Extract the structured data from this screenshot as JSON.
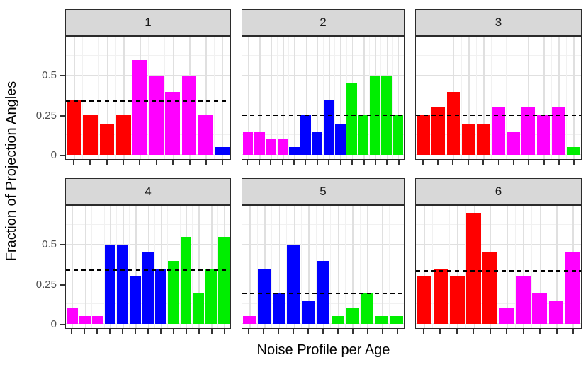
{
  "chart_data": {
    "type": "bar",
    "title": "",
    "xlabel": "Noise Profile per Age",
    "ylabel": "Fraction of Projection Angles",
    "y_tick_labels": [
      "0.5",
      "0.25",
      "0"
    ],
    "y_tick_values": [
      0.5,
      0.25,
      0
    ],
    "y_grid_major": [
      0,
      0.25,
      0.5
    ],
    "y_grid_minor": [
      0.125,
      0.375,
      0.625
    ],
    "ylim": [
      -0.025,
      0.746
    ],
    "grid": true,
    "legend_position": "none",
    "x_tick_labels": "none (tick marks only, one per bar)",
    "colors": {
      "red": "#ff0000",
      "magenta": "#ff00ff",
      "blue": "#0000ff",
      "green": "#00ee00"
    },
    "panels": [
      {
        "label": "1",
        "mean_line": 0.335,
        "values": [
          0.35,
          0.25,
          0.2,
          0.25,
          0.6,
          0.5,
          0.4,
          0.5,
          0.25,
          0.05
        ],
        "colors": [
          "red",
          "red",
          "red",
          "red",
          "magenta",
          "magenta",
          "magenta",
          "magenta",
          "magenta",
          "blue"
        ]
      },
      {
        "label": "2",
        "mean_line": 0.246,
        "values": [
          0.15,
          0.15,
          0.1,
          0.1,
          0.05,
          0.25,
          0.15,
          0.35,
          0.2,
          0.45,
          0.25,
          0.5,
          0.5,
          0.25
        ],
        "colors": [
          "magenta",
          "magenta",
          "magenta",
          "magenta",
          "blue",
          "blue",
          "blue",
          "blue",
          "blue",
          "green",
          "green",
          "green",
          "green",
          "green"
        ]
      },
      {
        "label": "3",
        "mean_line": 0.245,
        "values": [
          0.25,
          0.3,
          0.4,
          0.2,
          0.2,
          0.3,
          0.15,
          0.3,
          0.25,
          0.3,
          0.05
        ],
        "colors": [
          "red",
          "red",
          "red",
          "red",
          "red",
          "magenta",
          "magenta",
          "magenta",
          "magenta",
          "magenta",
          "green"
        ]
      },
      {
        "label": "4",
        "mean_line": 0.335,
        "values": [
          0.1,
          0.05,
          0.05,
          0.5,
          0.5,
          0.3,
          0.45,
          0.35,
          0.4,
          0.55,
          0.2,
          0.35,
          0.55
        ],
        "colors": [
          "magenta",
          "magenta",
          "magenta",
          "blue",
          "blue",
          "blue",
          "blue",
          "blue",
          "green",
          "green",
          "green",
          "green",
          "green"
        ]
      },
      {
        "label": "5",
        "mean_line": 0.19,
        "values": [
          0.05,
          0.35,
          0.2,
          0.5,
          0.15,
          0.4,
          0.05,
          0.1,
          0.2,
          0.05,
          0.05
        ],
        "colors": [
          "magenta",
          "blue",
          "blue",
          "blue",
          "blue",
          "blue",
          "green",
          "green",
          "green",
          "green",
          "green"
        ]
      },
      {
        "label": "6",
        "mean_line": 0.33,
        "values": [
          0.3,
          0.35,
          0.3,
          0.7,
          0.45,
          0.1,
          0.3,
          0.2,
          0.15,
          0.45
        ],
        "colors": [
          "red",
          "red",
          "red",
          "red",
          "red",
          "magenta",
          "magenta",
          "magenta",
          "magenta",
          "magenta"
        ]
      }
    ]
  }
}
